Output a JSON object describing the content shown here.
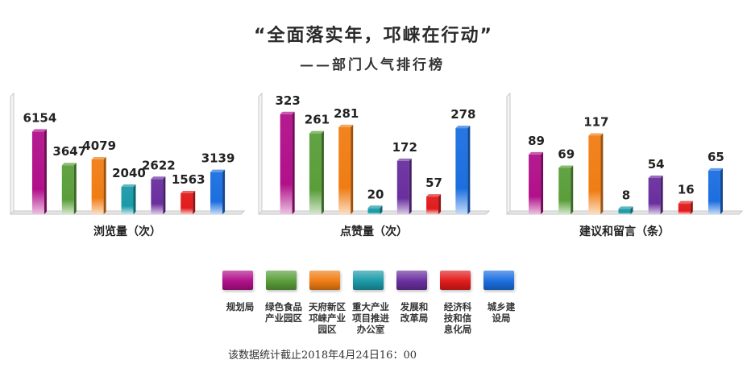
{
  "header": {
    "title": "“全面落实年，邛崃在行动”",
    "subtitle": "——部门人气排行榜"
  },
  "departments": [
    {
      "name": "规划局",
      "color": "#b1108a"
    },
    {
      "name": "绿色食品\n产业园区",
      "color": "#5a9e3a"
    },
    {
      "name": "天府新区\n邛崃产业\n园区",
      "color": "#f07d14"
    },
    {
      "name": "重大产业\n项目推进\n办公室",
      "color": "#1b9aa8"
    },
    {
      "name": "发展和\n改革局",
      "color": "#6a2f9e"
    },
    {
      "name": "经济科\n技和信\n息化局",
      "color": "#e21c1c"
    },
    {
      "name": "城乡建\n设局",
      "color": "#1c6fe0"
    }
  ],
  "chart_data": [
    {
      "type": "bar",
      "xlabel": "浏览量（次）",
      "categories": [
        "规划局",
        "绿色食品产业园区",
        "天府新区邛崃产业园区",
        "重大产业项目推进办公室",
        "发展和改革局",
        "经济科技和信息化局",
        "城乡建设局"
      ],
      "values": [
        6154,
        3647,
        4079,
        2040,
        2622,
        1563,
        3139
      ],
      "ylim": [
        0,
        9000
      ]
    },
    {
      "type": "bar",
      "xlabel": "点赞量（次）",
      "categories": [
        "规划局",
        "绿色食品产业园区",
        "天府新区邛崃产业园区",
        "重大产业项目推进办公室",
        "发展和改革局",
        "经济科技和信息化局",
        "城乡建设局"
      ],
      "values": [
        323,
        261,
        281,
        20,
        172,
        57,
        278
      ],
      "ylim": [
        0,
        390
      ]
    },
    {
      "type": "bar",
      "xlabel": "建议和留言（条）",
      "categories": [
        "规划局",
        "绿色食品产业园区",
        "天府新区邛崃产业园区",
        "重大产业项目推进办公室",
        "发展和改革局",
        "经济科技和信息化局",
        "城乡建设局"
      ],
      "values": [
        89,
        69,
        117,
        8,
        54,
        16,
        65
      ],
      "ylim": [
        0,
        180
      ]
    }
  ],
  "footnote": "该数据统计截止2018年4月24日16：00"
}
